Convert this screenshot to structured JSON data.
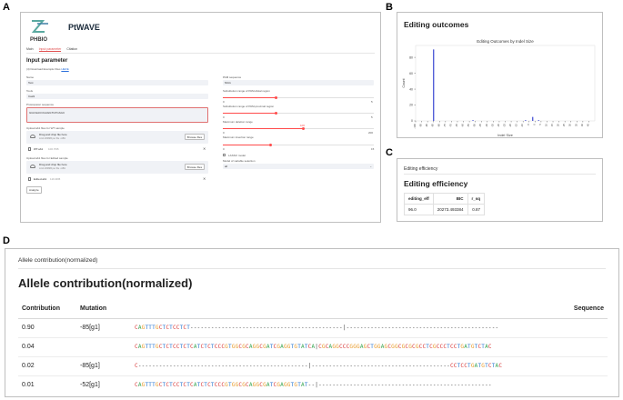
{
  "panel_labels": {
    "a": "A",
    "b": "B",
    "c": "C",
    "d": "D"
  },
  "app": {
    "logo_small": "PHBIO",
    "name": "PtWAVE",
    "tabs": [
      "Main",
      "Input parameter",
      "Citation"
    ],
    "heading": "Input parameter",
    "download_text": "(4) Download Example Files",
    "download_link": "HERE",
    "fields": {
      "name_label": "Name",
      "name_value": "Test",
      "tools_label": "Tools",
      "tools_value": "Cas9",
      "protospacer_label": "Protospacer sequence",
      "protospacer_value": "GGCGACCGAGGTGTCAGC",
      "upload_wt_label": "Upload ab1 files for WT sample",
      "upload_ed_label": "Upload ab1 files for Edited sample",
      "drag_text": "Drag and drop file here",
      "limit_text": "Limit 200MB per file • AB1",
      "browse_label": "Browse files",
      "file_wt": "WT.ab1",
      "file_wt_size": "100.7KB",
      "file_ed": "Edited.ab1",
      "file_ed_size": "119.3KB",
      "analyze_label": "Analyze",
      "pam_label": "PAM sequence",
      "pam_value": "NGG",
      "sub_start_label": "Substitution range of PAM-distal region",
      "sub_start_min": "0",
      "sub_start_max": "5",
      "sub_end_label": "Substitution range of PAM-proximal region",
      "sub_end_min": "0",
      "sub_end_max": "5",
      "del_label": "Maximum deletion range",
      "del_min": "0",
      "del_max": "200",
      "del_value": "100",
      "ins_label": "Maximum insertion range",
      "ins_min": "0",
      "ins_max": "15",
      "lasso_label": "LASSO model",
      "model_label": "Model of variable selection",
      "model_value": "all"
    }
  },
  "outcomes": {
    "header": "Editing outcomes",
    "chart_data": {
      "type": "bar",
      "title": "Editing Outcomes by Indel Size",
      "xlabel": "Indel Size",
      "ylabel": "Count",
      "xlim": [
        -100,
        50
      ],
      "ylim": [
        0,
        95
      ],
      "yticks": [
        0,
        20,
        40,
        60,
        80
      ],
      "xticks": [
        -100,
        -95,
        -90,
        -85,
        -80,
        -75,
        -70,
        -65,
        -60,
        -55,
        -50,
        -45,
        -40,
        -35,
        -30,
        -25,
        -20,
        -15,
        -10,
        -5,
        0,
        5,
        10,
        15,
        20,
        25,
        30,
        35,
        40,
        45
      ],
      "x": [
        -85,
        -52,
        -8,
        -2,
        3
      ],
      "values": [
        90,
        1,
        1,
        5,
        1
      ],
      "color": "#5560d8"
    }
  },
  "efficiency": {
    "subheader": "Editing efficiency",
    "header": "Editing efficiency",
    "columns": [
      "editing_eff",
      "BIC",
      "r_sq"
    ],
    "row": [
      "96.0",
      "20273.493384",
      "0.87"
    ]
  },
  "allele": {
    "subheader": "Allele contribution(normalized)",
    "header": "Allele contribution(normalized)",
    "columns": [
      "Contribution",
      "Mutation",
      "Sequence"
    ],
    "rows": [
      {
        "contribution": "0.90",
        "mutation": "-85[g1]",
        "sequence": "CAGTTTGCTCTCCTCT--------------------------------------------|--------------------------------------------"
      },
      {
        "contribution": "0.04",
        "mutation": "",
        "sequence": "CAGTTTGCTCTCCTCTCATCTCTCCCGTGGCGCAGGCGATCGAGGTGTATCA|CGCAGGCCCGGGAGCTGGAGCGGCGCGCGCCTCGCCCTCCTGATGTCTAC"
      },
      {
        "contribution": "0.02",
        "mutation": "-85[g1]",
        "sequence": "C-------------------------------------------------|----------------------------------------CCTCCTGATGTCTAC"
      },
      {
        "contribution": "0.01",
        "mutation": "-52[g1]",
        "sequence": "CAGTTTGCTCTCCTCTCATCTCTCCCGTGGCGCAGGCGATCGAGGTGTAT--|--------------------------------------------------"
      }
    ],
    "base_colors": {
      "A": "#3aa655",
      "C": "#d83a3a",
      "G": "#e89b2a",
      "T": "#2f7ad0",
      "-": "#444444",
      "|": "#444444"
    }
  }
}
